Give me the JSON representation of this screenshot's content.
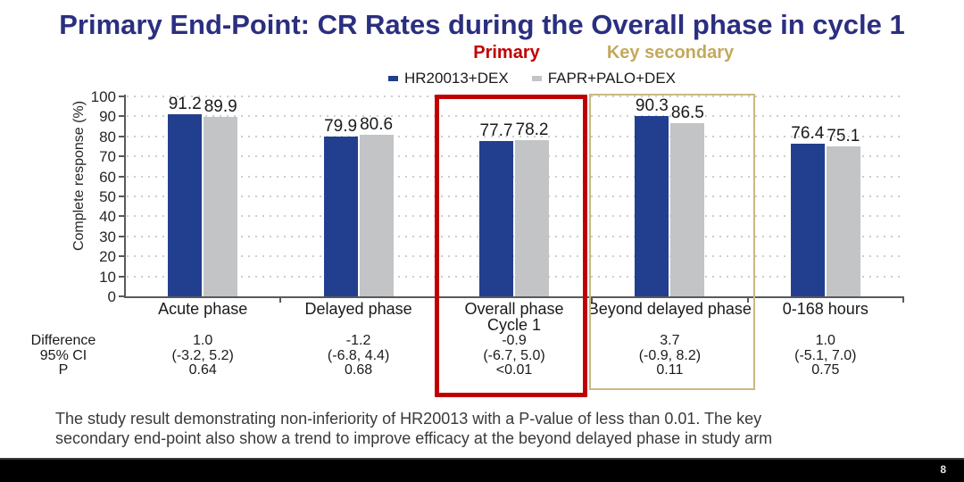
{
  "title": {
    "text": "Primary End-Point: CR Rates during the Overall phase in cycle 1"
  },
  "annotations": {
    "primary": "Primary",
    "key_secondary": "Key secondary",
    "primary_color": "#c00000",
    "key_secondary_color": "#c3a95c"
  },
  "legend": [
    {
      "label": "HR20013+DEX",
      "color": "#223f8f"
    },
    {
      "label": "FAPR+PALO+DEX",
      "color": "#c2c4c6"
    }
  ],
  "chart_data": {
    "type": "bar",
    "title": "Primary End-Point: CR Rates during the Overall phase in cycle 1",
    "xlabel": "",
    "ylabel": "Complete response (%)",
    "ylim": [
      0,
      100
    ],
    "yticks": [
      0,
      10,
      20,
      30,
      40,
      50,
      60,
      70,
      80,
      90,
      100
    ],
    "grid": "horizontal-dotted",
    "legend_position": "top",
    "categories": [
      "Acute phase",
      "Delayed phase",
      "Overall phase Cycle 1",
      "Beyond delayed phase",
      "0-168 hours"
    ],
    "category_lines": [
      [
        "Acute phase"
      ],
      [
        "Delayed phase"
      ],
      [
        "Overall phase",
        "Cycle 1"
      ],
      [
        "Beyond delayed phase"
      ],
      [
        "0-168 hours"
      ]
    ],
    "series": [
      {
        "name": "HR20013+DEX",
        "color": "#223f8f",
        "values": [
          91.2,
          79.9,
          77.7,
          90.3,
          76.4
        ]
      },
      {
        "name": "FAPR+PALO+DEX",
        "color": "#c2c4c6",
        "values": [
          89.9,
          80.6,
          78.2,
          86.5,
          75.1
        ]
      }
    ]
  },
  "stats_table": {
    "row_labels": [
      "Difference",
      "95% CI",
      "P"
    ],
    "columns": [
      {
        "category": "Acute phase",
        "values": [
          "1.0",
          "(-3.2, 5.2)",
          "0.64"
        ]
      },
      {
        "category": "Delayed phase",
        "values": [
          "-1.2",
          "(-6.8, 4.4)",
          "0.68"
        ]
      },
      {
        "category": "Overall phase Cycle 1",
        "values": [
          "-0.9",
          "(-6.7, 5.0)",
          "<0.01"
        ]
      },
      {
        "category": "Beyond delayed phase",
        "values": [
          "3.7",
          "(-0.9, 8.2)",
          "0.11"
        ]
      },
      {
        "category": "0-168 hours",
        "values": [
          "1.0",
          "(-5.1, 7.0)",
          "0.75"
        ]
      }
    ]
  },
  "highlight_boxes": [
    {
      "name": "primary-endpoint-box",
      "color": "#c00000",
      "target": "Overall phase Cycle 1"
    },
    {
      "name": "key-secondary-box",
      "color": "#c8ba80",
      "target": "Beyond delayed phase"
    }
  ],
  "footnote": {
    "line1": "The study result demonstrating non-inferiority of HR20013 with a P-value of less than 0.01. The key",
    "line2": "secondary end-point also show a trend to improve efficacy at the beyond delayed phase in study arm"
  },
  "footer": {
    "page_number": "8"
  }
}
